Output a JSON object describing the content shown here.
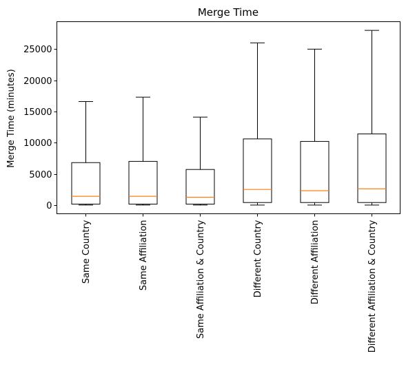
{
  "chart_data": {
    "type": "box",
    "title": "Merge Time",
    "xlabel": "",
    "ylabel": "Merge Time (minutes)",
    "ylim": [
      -1400,
      29400
    ],
    "yticks": [
      0,
      5000,
      10000,
      15000,
      20000,
      25000
    ],
    "grid": false,
    "categories": [
      "Same Country",
      "Same Affiliation",
      "Same Affiliation & Country",
      "Different Country",
      "Different Affiliation",
      "Different Affiliation & Country"
    ],
    "boxes": [
      {
        "whisker_low": 0,
        "q1": 150,
        "median": 1400,
        "q3": 6800,
        "whisker_high": 16600
      },
      {
        "whisker_low": 0,
        "q1": 150,
        "median": 1400,
        "q3": 7000,
        "whisker_high": 17300
      },
      {
        "whisker_low": 0,
        "q1": 150,
        "median": 1250,
        "q3": 5700,
        "whisker_high": 14100
      },
      {
        "whisker_low": 0,
        "q1": 400,
        "median": 2500,
        "q3": 10600,
        "whisker_high": 26000
      },
      {
        "whisker_low": 0,
        "q1": 400,
        "median": 2300,
        "q3": 10200,
        "whisker_high": 25000
      },
      {
        "whisker_low": 0,
        "q1": 400,
        "median": 2600,
        "q3": 11400,
        "whisker_high": 28000
      }
    ],
    "colors": {
      "box": "#000000",
      "median": "#ff7f0e"
    }
  }
}
